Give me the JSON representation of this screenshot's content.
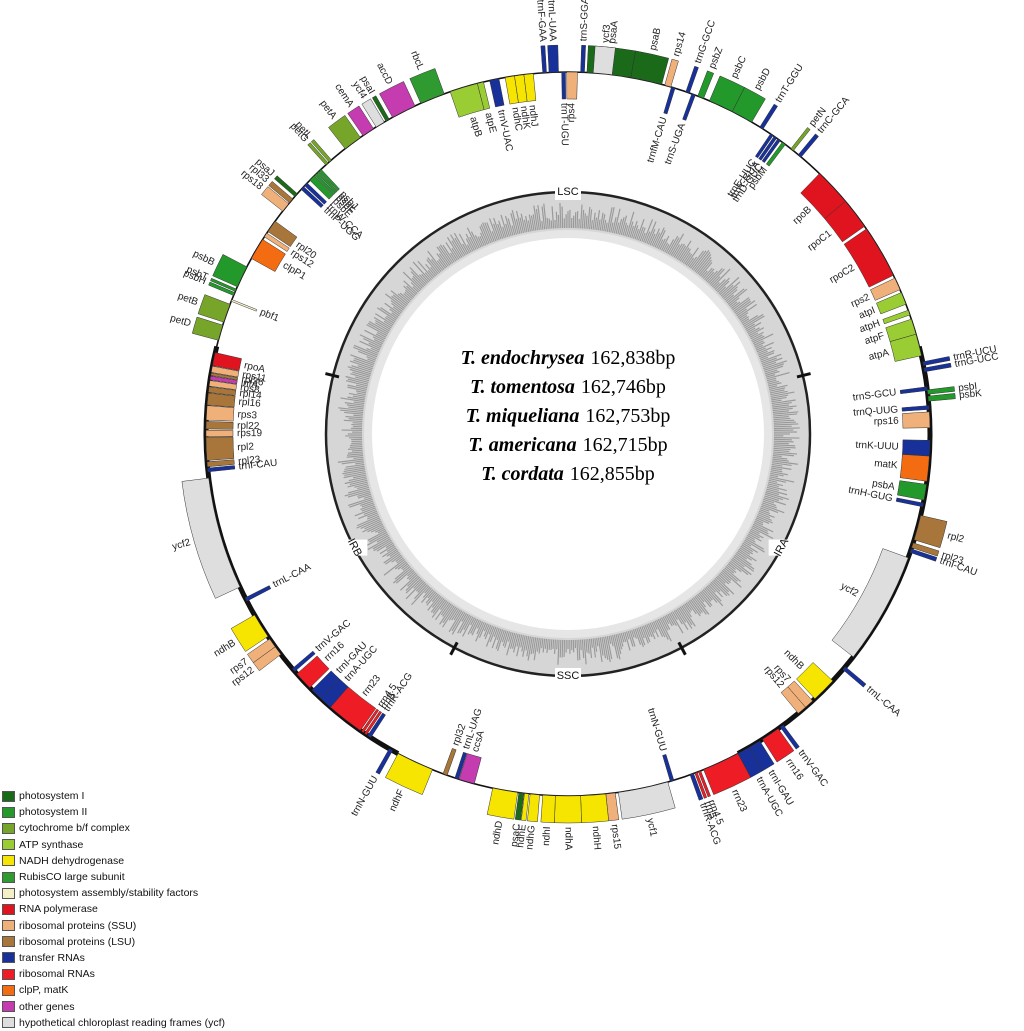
{
  "legend": [
    {
      "label": "photosystem I",
      "color": "#1a6a1a"
    },
    {
      "label": "photosystem II",
      "color": "#22992a"
    },
    {
      "label": "cytochrome b/f complex",
      "color": "#76a52a"
    },
    {
      "label": "ATP synthase",
      "color": "#9acc33"
    },
    {
      "label": "NADH dehydrogenase",
      "color": "#f5e500"
    },
    {
      "label": "RubisCO large subunit",
      "color": "#2f9a2f"
    },
    {
      "label": "photosystem assembly/stability factors",
      "color": "#f3f0c8"
    },
    {
      "label": "RNA polymerase",
      "color": "#e0141e"
    },
    {
      "label": "ribosomal proteins (SSU)",
      "color": "#f0b07a"
    },
    {
      "label": "ribosomal proteins (LSU)",
      "color": "#a8763a"
    },
    {
      "label": "transfer RNAs",
      "color": "#17309a"
    },
    {
      "label": "ribosomal RNAs",
      "color": "#ee1c24"
    },
    {
      "label": "clpP, matK",
      "color": "#f36c12"
    },
    {
      "label": "other genes",
      "color": "#c43cb0"
    },
    {
      "label": "hypothetical chloroplast reading frames (ycf)",
      "color": "#dedede"
    }
  ],
  "center_text": [
    {
      "species": "T. endochrysea",
      "size": "162,838bp"
    },
    {
      "species": "T. tomentosa",
      "size": "162,746bp"
    },
    {
      "species": "T. miqueliana",
      "size": "162,753bp"
    },
    {
      "species": "T. americana",
      "size": "162,715bp"
    },
    {
      "species": "T. cordata",
      "size": "162,855bp"
    }
  ],
  "regions": [
    {
      "label": "LSC",
      "angle": 0
    },
    {
      "label": "IRA",
      "angle": 118
    },
    {
      "label": "SSC",
      "angle": 180
    },
    {
      "label": "IRB",
      "angle": 242
    }
  ],
  "boundaries": [
    76,
    152,
    208,
    284
  ],
  "genes": [
    {
      "name": "psaA",
      "a1": 3,
      "a2": 10,
      "out": true,
      "cat": "photosystem I"
    },
    {
      "name": "psaB",
      "a1": 10,
      "a2": 15,
      "out": true,
      "cat": "photosystem I"
    },
    {
      "name": "rps14",
      "a1": 15.5,
      "a2": 16.5,
      "out": true,
      "cat": "ribosomal proteins (SSU)"
    },
    {
      "name": "trnfM-CAU",
      "a1": 16.6,
      "a2": 17.2,
      "out": false,
      "cat": "transfer RNAs"
    },
    {
      "name": "trnG-GCC",
      "a1": 19,
      "a2": 19.6,
      "out": true,
      "cat": "transfer RNAs"
    },
    {
      "name": "trnS-UGA",
      "a1": 20,
      "a2": 20.6,
      "out": false,
      "cat": "transfer RNAs"
    },
    {
      "name": "psbZ",
      "a1": 21,
      "a2": 22,
      "out": true,
      "cat": "photosystem II"
    },
    {
      "name": "psbC",
      "a1": 23,
      "a2": 27,
      "out": true,
      "cat": "photosystem II"
    },
    {
      "name": "psbD",
      "a1": 27,
      "a2": 30.5,
      "out": true,
      "cat": "photosystem II"
    },
    {
      "name": "trnT-GGU",
      "a1": 32,
      "a2": 32.6,
      "out": true,
      "cat": "transfer RNAs"
    },
    {
      "name": "trnE-UUC",
      "a1": 34,
      "a2": 34.5,
      "out": false,
      "cat": "transfer RNAs"
    },
    {
      "name": "trnY-GUA",
      "a1": 34.7,
      "a2": 35.2,
      "out": false,
      "cat": "transfer RNAs"
    },
    {
      "name": "trnD-GUC",
      "a1": 35.4,
      "a2": 35.9,
      "out": false,
      "cat": "transfer RNAs"
    },
    {
      "name": "psbM",
      "a1": 36.3,
      "a2": 36.9,
      "out": false,
      "cat": "photosystem II"
    },
    {
      "name": "petN",
      "a1": 38,
      "a2": 38.5,
      "out": true,
      "cat": "cytochrome b/f complex"
    },
    {
      "name": "trnC-GCA",
      "a1": 39.5,
      "a2": 40.1,
      "out": true,
      "cat": "transfer RNAs"
    },
    {
      "name": "rpoB",
      "a1": 44,
      "a2": 50,
      "out": false,
      "cat": "RNA polymerase"
    },
    {
      "name": "rpoC1",
      "a1": 50,
      "a2": 55,
      "out": false,
      "cat": "RNA polymerase"
    },
    {
      "name": "rpoC2",
      "a1": 55.5,
      "a2": 64,
      "out": false,
      "cat": "RNA polymerase"
    },
    {
      "name": "rps2",
      "a1": 64.5,
      "a2": 66.5,
      "out": false,
      "cat": "ribosomal proteins (SSU)"
    },
    {
      "name": "atpI",
      "a1": 67,
      "a2": 69,
      "out": false,
      "cat": "ATP synthase"
    },
    {
      "name": "atpH",
      "a1": 70,
      "a2": 70.8,
      "out": false,
      "cat": "ATP synthase"
    },
    {
      "name": "atpF",
      "a1": 71.5,
      "a2": 74,
      "out": false,
      "cat": "ATP synthase"
    },
    {
      "name": "atpA",
      "a1": 74,
      "a2": 77.5,
      "out": false,
      "cat": "ATP synthase"
    },
    {
      "name": "trnR-UCU",
      "a1": 78.5,
      "a2": 79.1,
      "out": true,
      "cat": "transfer RNAs"
    },
    {
      "name": "trnG-UCC",
      "a1": 79.5,
      "a2": 80.1,
      "out": true,
      "cat": "transfer RNAs"
    },
    {
      "name": "trnS-GCU",
      "a1": 82.5,
      "a2": 83.1,
      "out": false,
      "cat": "transfer RNAs"
    },
    {
      "name": "psbI",
      "a1": 83,
      "a2": 83.7,
      "out": true,
      "cat": "photosystem II"
    },
    {
      "name": "psbK",
      "a1": 84,
      "a2": 84.8,
      "out": true,
      "cat": "photosystem II"
    },
    {
      "name": "trnQ-UUG",
      "a1": 85.5,
      "a2": 86.1,
      "out": false,
      "cat": "transfer RNAs"
    },
    {
      "name": "rps16",
      "a1": 86.5,
      "a2": 89,
      "out": false,
      "cat": "ribosomal proteins (SSU)"
    },
    {
      "name": "trnK-UUU",
      "a1": 91,
      "a2": 93.5,
      "out": false,
      "cat": "transfer RNAs"
    },
    {
      "name": "matK",
      "a1": 93.5,
      "a2": 97.5,
      "out": false,
      "cat": "clpP, matK"
    },
    {
      "name": "psbA",
      "a1": 98,
      "a2": 100.5,
      "out": false,
      "cat": "photosystem II"
    },
    {
      "name": "trnH-GUG",
      "a1": 101,
      "a2": 101.6,
      "out": false,
      "cat": "transfer RNAs"
    },
    {
      "name": "rpl2",
      "a1": 103,
      "a2": 107,
      "out": true,
      "cat": "ribosomal proteins (LSU)"
    },
    {
      "name": "rpl23",
      "a1": 107.5,
      "a2": 108.3,
      "out": true,
      "cat": "ribosomal proteins (LSU)"
    },
    {
      "name": "trnI-CAU",
      "a1": 108.5,
      "a2": 109.1,
      "out": true,
      "cat": "transfer RNAs"
    },
    {
      "name": "ycf2",
      "a1": 110,
      "a2": 128,
      "out": false,
      "cat": "hypothetical chloroplast reading frames (ycf)"
    },
    {
      "name": "trnL-CAA",
      "a1": 130,
      "a2": 130.6,
      "out": true,
      "cat": "transfer RNAs"
    },
    {
      "name": "ndhB",
      "a1": 133,
      "a2": 137,
      "out": false,
      "cat": "NADH dehydrogenase"
    },
    {
      "name": "rps7",
      "a1": 137.5,
      "a2": 139,
      "out": false,
      "cat": "ribosomal proteins (SSU)"
    },
    {
      "name": "rps12",
      "a1": 139,
      "a2": 140.5,
      "out": false,
      "cat": "ribosomal proteins (SSU)"
    },
    {
      "name": "trnV-GAC",
      "a1": 143.5,
      "a2": 144.1,
      "out": true,
      "cat": "transfer RNAs"
    },
    {
      "name": "rrn16",
      "a1": 144.5,
      "a2": 147.5,
      "out": true,
      "cat": "ribosomal RNAs"
    },
    {
      "name": "trnI-GAU",
      "a1": 148,
      "a2": 150,
      "out": true,
      "cat": "transfer RNAs"
    },
    {
      "name": "trnA-UGC",
      "a1": 150,
      "a2": 152,
      "out": true,
      "cat": "transfer RNAs"
    },
    {
      "name": "rrn23",
      "a1": 152,
      "a2": 158,
      "out": true,
      "cat": "ribosomal RNAs"
    },
    {
      "name": "rrn4.5",
      "a1": 158.5,
      "a2": 158.9,
      "out": true,
      "cat": "ribosomal RNAs"
    },
    {
      "name": "rrn5",
      "a1": 159.1,
      "a2": 159.5,
      "out": true,
      "cat": "ribosomal RNAs"
    },
    {
      "name": "trnR-ACG",
      "a1": 159.7,
      "a2": 160.3,
      "out": true,
      "cat": "transfer RNAs"
    },
    {
      "name": "trnN-GUU",
      "a1": 163,
      "a2": 163.6,
      "out": false,
      "cat": "transfer RNAs"
    },
    {
      "name": "ycf1",
      "a1": 164,
      "a2": 172,
      "out": true,
      "cat": "hypothetical chloroplast reading frames (ycf)"
    },
    {
      "name": "rps15",
      "a1": 172.5,
      "a2": 174,
      "out": true,
      "cat": "ribosomal proteins (SSU)"
    },
    {
      "name": "ndhH",
      "a1": 174,
      "a2": 178,
      "out": true,
      "cat": "NADH dehydrogenase"
    },
    {
      "name": "ndhA",
      "a1": 178,
      "a2": 182,
      "out": true,
      "cat": "NADH dehydrogenase"
    },
    {
      "name": "ndhI",
      "a1": 182,
      "a2": 184,
      "out": true,
      "cat": "NADH dehydrogenase"
    },
    {
      "name": "ndhG",
      "a1": 184.5,
      "a2": 186,
      "out": true,
      "cat": "NADH dehydrogenase"
    },
    {
      "name": "ndhE",
      "a1": 186.2,
      "a2": 186.9,
      "out": true,
      "cat": "NADH dehydrogenase"
    },
    {
      "name": "psaC",
      "a1": 187,
      "a2": 187.8,
      "out": true,
      "cat": "photosystem I"
    },
    {
      "name": "ndhD",
      "a1": 188,
      "a2": 192,
      "out": true,
      "cat": "NADH dehydrogenase"
    },
    {
      "name": "ccsA",
      "a1": 195,
      "a2": 197.5,
      "out": false,
      "cat": "other genes"
    },
    {
      "name": "trnL-UAG",
      "a1": 197.6,
      "a2": 198.2,
      "out": false,
      "cat": "transfer RNAs"
    },
    {
      "name": "rpl32",
      "a1": 199.5,
      "a2": 200.2,
      "out": false,
      "cat": "ribosomal proteins (LSU)"
    },
    {
      "name": "ndhF",
      "a1": 202,
      "a2": 208,
      "out": true,
      "cat": "NADH dehydrogenase"
    },
    {
      "name": "trnN-GUU",
      "a1": 209,
      "a2": 209.6,
      "out": true,
      "cat": "transfer RNAs"
    },
    {
      "name": "trnR-ACG",
      "a1": 213,
      "a2": 213.6,
      "out": false,
      "cat": "transfer RNAs"
    },
    {
      "name": "rrn5",
      "a1": 213.8,
      "a2": 214.2,
      "out": false,
      "cat": "ribosomal RNAs"
    },
    {
      "name": "rrn4.5",
      "a1": 214.4,
      "a2": 214.8,
      "out": false,
      "cat": "ribosomal RNAs"
    },
    {
      "name": "rrn23",
      "a1": 215,
      "a2": 221,
      "out": false,
      "cat": "ribosomal RNAs"
    },
    {
      "name": "trnA-UGC",
      "a1": 221,
      "a2": 223,
      "out": false,
      "cat": "transfer RNAs"
    },
    {
      "name": "trnI-GAU",
      "a1": 223,
      "a2": 225,
      "out": false,
      "cat": "transfer RNAs"
    },
    {
      "name": "rrn16",
      "a1": 225.5,
      "a2": 228.5,
      "out": false,
      "cat": "ribosomal RNAs"
    },
    {
      "name": "trnV-GAC",
      "a1": 229,
      "a2": 229.6,
      "out": false,
      "cat": "transfer RNAs"
    },
    {
      "name": "rps12",
      "a1": 232.5,
      "a2": 234,
      "out": true,
      "cat": "ribosomal proteins (SSU)"
    },
    {
      "name": "rps7",
      "a1": 234,
      "a2": 235.5,
      "out": true,
      "cat": "ribosomal proteins (SSU)"
    },
    {
      "name": "ndhB",
      "a1": 236,
      "a2": 240,
      "out": true,
      "cat": "NADH dehydrogenase"
    },
    {
      "name": "trnL-CAA",
      "a1": 242.5,
      "a2": 243.1,
      "out": false,
      "cat": "transfer RNAs"
    },
    {
      "name": "ycf2",
      "a1": 245,
      "a2": 263,
      "out": true,
      "cat": "hypothetical chloroplast reading frames (ycf)"
    },
    {
      "name": "trnI-CAU",
      "a1": 264,
      "a2": 264.6,
      "out": false,
      "cat": "transfer RNAs"
    },
    {
      "name": "rpl23",
      "a1": 264.8,
      "a2": 265.6,
      "out": false,
      "cat": "ribosomal proteins (LSU)"
    },
    {
      "name": "rpl2",
      "a1": 265.8,
      "a2": 269.5,
      "out": false,
      "cat": "ribosomal proteins (LSU)"
    },
    {
      "name": "rps19",
      "a1": 269.6,
      "a2": 270.6,
      "out": false,
      "cat": "ribosomal proteins (SSU)"
    },
    {
      "name": "rpl22",
      "a1": 270.8,
      "a2": 272,
      "out": false,
      "cat": "ribosomal proteins (LSU)"
    },
    {
      "name": "rps3",
      "a1": 272.2,
      "a2": 274.5,
      "out": false,
      "cat": "ribosomal proteins (SSU)"
    },
    {
      "name": "rpl16",
      "a1": 274.6,
      "a2": 276.5,
      "out": false,
      "cat": "ribosomal proteins (LSU)"
    },
    {
      "name": "rpl14",
      "a1": 276.6,
      "a2": 277.5,
      "out": false,
      "cat": "ribosomal proteins (LSU)"
    },
    {
      "name": "rps8",
      "a1": 277.6,
      "a2": 278.5,
      "out": false,
      "cat": "ribosomal proteins (SSU)"
    },
    {
      "name": "infA",
      "a1": 278.6,
      "a2": 279.2,
      "out": false,
      "cat": "other genes"
    },
    {
      "name": "rpl36",
      "a1": 279.3,
      "a2": 279.7,
      "out": false,
      "cat": "ribosomal proteins (LSU)"
    },
    {
      "name": "rps11",
      "a1": 279.8,
      "a2": 280.8,
      "out": false,
      "cat": "ribosomal proteins (SSU)"
    },
    {
      "name": "rpoA",
      "a1": 280.9,
      "a2": 283,
      "out": false,
      "cat": "RNA polymerase"
    },
    {
      "name": "petD",
      "a1": 285,
      "a2": 287.5,
      "out": true,
      "cat": "cytochrome b/f complex"
    },
    {
      "name": "petB",
      "a1": 288,
      "a2": 291,
      "out": true,
      "cat": "cytochrome b/f complex"
    },
    {
      "name": "pbf1",
      "a1": 291.5,
      "a2": 291.8,
      "out": false,
      "cat": "photosystem assembly/stability factors"
    },
    {
      "name": "psbH",
      "a1": 292.5,
      "a2": 293,
      "out": true,
      "cat": "photosystem II"
    },
    {
      "name": "psbT",
      "a1": 293.2,
      "a2": 293.6,
      "out": true,
      "cat": "photosystem II"
    },
    {
      "name": "psbB",
      "a1": 294,
      "a2": 297.5,
      "out": true,
      "cat": "photosystem II"
    },
    {
      "name": "clpP1",
      "a1": 299,
      "a2": 302.5,
      "out": false,
      "cat": "clpP, matK"
    },
    {
      "name": "rps12",
      "a1": 303,
      "a2": 303.7,
      "out": false,
      "cat": "ribosomal proteins (SSU)"
    },
    {
      "name": "rpl20",
      "a1": 304,
      "a2": 306,
      "out": false,
      "cat": "ribosomal proteins (LSU)"
    },
    {
      "name": "rps18",
      "a1": 308,
      "a2": 309.5,
      "out": true,
      "cat": "ribosomal proteins (SSU)"
    },
    {
      "name": "rpl33",
      "a1": 309.7,
      "a2": 310.5,
      "out": true,
      "cat": "ribosomal proteins (LSU)"
    },
    {
      "name": "psaJ",
      "a1": 311,
      "a2": 311.6,
      "out": true,
      "cat": "photosystem I"
    },
    {
      "name": "trnP-UGG",
      "a1": 312.5,
      "a2": 313.1,
      "out": false,
      "cat": "transfer RNAs"
    },
    {
      "name": "trnW-CCA",
      "a1": 313.3,
      "a2": 313.9,
      "out": false,
      "cat": "transfer RNAs"
    },
    {
      "name": "psbE",
      "a1": 314.5,
      "a2": 315.5,
      "out": false,
      "cat": "photosystem II"
    },
    {
      "name": "psbF",
      "a1": 315.6,
      "a2": 316,
      "out": false,
      "cat": "photosystem II"
    },
    {
      "name": "psbL",
      "a1": 316.1,
      "a2": 316.5,
      "out": false,
      "cat": "photosystem II"
    },
    {
      "name": "psbJ",
      "a1": 316.6,
      "a2": 317,
      "out": false,
      "cat": "photosystem II"
    },
    {
      "name": "petG",
      "a1": 318,
      "a2": 318.5,
      "out": true,
      "cat": "cytochrome b/f complex"
    },
    {
      "name": "petL",
      "a1": 318.7,
      "a2": 319.2,
      "out": true,
      "cat": "cytochrome b/f complex"
    },
    {
      "name": "petA",
      "a1": 322,
      "a2": 325,
      "out": true,
      "cat": "cytochrome b/f complex"
    },
    {
      "name": "cemA",
      "a1": 325.5,
      "a2": 327.5,
      "out": true,
      "cat": "other genes"
    },
    {
      "name": "ycf4",
      "a1": 328,
      "a2": 329.5,
      "out": true,
      "cat": "hypothetical chloroplast reading frames (ycf)"
    },
    {
      "name": "psaI",
      "a1": 329.8,
      "a2": 330.4,
      "out": true,
      "cat": "photosystem I"
    },
    {
      "name": "accD",
      "a1": 331,
      "a2": 335,
      "out": true,
      "cat": "other genes"
    },
    {
      "name": "rbcL",
      "a1": 336,
      "a2": 340,
      "out": true,
      "cat": "RubisCO large subunit"
    },
    {
      "name": "atpB",
      "a1": 341,
      "a2": 345.5,
      "out": false,
      "cat": "ATP synthase"
    },
    {
      "name": "atpE",
      "a1": 345.5,
      "a2": 346.5,
      "out": false,
      "cat": "ATP synthase"
    },
    {
      "name": "trnV-UAC",
      "a1": 347.5,
      "a2": 349,
      "out": false,
      "cat": "transfer RNAs"
    },
    {
      "name": "ndhC",
      "a1": 350,
      "a2": 351.5,
      "out": false,
      "cat": "NADH dehydrogenase"
    },
    {
      "name": "ndhK",
      "a1": 351.5,
      "a2": 353,
      "out": false,
      "cat": "NADH dehydrogenase"
    },
    {
      "name": "ndhJ",
      "a1": 353,
      "a2": 354.5,
      "out": false,
      "cat": "NADH dehydrogenase"
    },
    {
      "name": "trnF-GAA",
      "a1": 356,
      "a2": 356.6,
      "out": true,
      "cat": "transfer RNAs"
    },
    {
      "name": "trnL-UAA",
      "a1": 357,
      "a2": 358.5,
      "out": true,
      "cat": "transfer RNAs"
    },
    {
      "name": "trnT-UGU",
      "a1": 359,
      "a2": 359.6,
      "out": false,
      "cat": "transfer RNAs"
    },
    {
      "name": "rps4",
      "a1": 359.8,
      "a2": 361.5,
      "out": false,
      "cat": "ribosomal proteins (SSU)"
    },
    {
      "name": "trnS-GGA",
      "a1": 362,
      "a2": 362.6,
      "out": true,
      "cat": "transfer RNAs"
    },
    {
      "name": "ycf3",
      "a1": 364,
      "a2": 367,
      "out": true,
      "cat": "hypothetical chloroplast reading frames (ycf)"
    }
  ]
}
